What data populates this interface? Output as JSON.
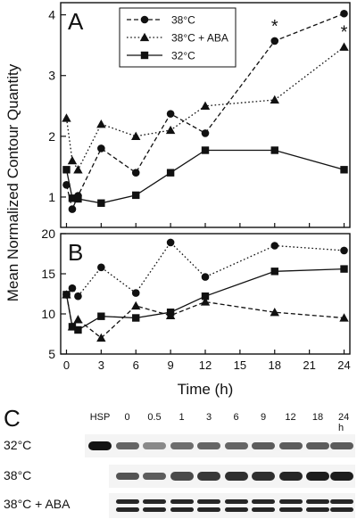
{
  "chart_data": [
    {
      "panel": "A",
      "type": "line",
      "ylabel": "Mean Normalized Contour Quantity",
      "ylim": [
        0.5,
        4.2
      ],
      "yticks": [
        1,
        2,
        3,
        4
      ],
      "xlim": [
        -0.5,
        24.5
      ],
      "series": [
        {
          "name": "38°C",
          "marker": "circle",
          "dash": "dashed",
          "x": [
            0,
            0.5,
            1,
            3,
            6,
            9,
            12,
            18,
            24
          ],
          "values": [
            1.2,
            0.8,
            1.02,
            1.8,
            1.4,
            2.37,
            2.05,
            3.57,
            4.02
          ]
        },
        {
          "name": "38°C + ABA",
          "marker": "triangle",
          "dash": "dotted",
          "x": [
            0,
            0.5,
            1,
            3,
            6,
            9,
            12,
            18,
            24
          ],
          "values": [
            2.3,
            1.6,
            1.45,
            2.2,
            2.0,
            2.1,
            2.5,
            2.6,
            3.47
          ]
        },
        {
          "name": "32°C",
          "marker": "square",
          "dash": "solid",
          "x": [
            0,
            0.5,
            1,
            3,
            6,
            9,
            12,
            18,
            24
          ],
          "values": [
            1.45,
            0.98,
            0.97,
            0.9,
            1.03,
            1.4,
            1.77,
            1.77,
            1.45
          ]
        }
      ],
      "annotations": [
        {
          "text": "*",
          "x": 18,
          "y": 3.57
        },
        {
          "text": "*",
          "x": 24,
          "y": 4.02
        },
        {
          "text": "*",
          "x": 24,
          "y": 3.47
        }
      ],
      "legend": "top-left"
    },
    {
      "panel": "B",
      "type": "line",
      "ylim": [
        5,
        20
      ],
      "yticks": [
        5,
        10,
        15,
        20
      ],
      "xlabel": "Time (h)",
      "xlim": [
        -0.5,
        24.5
      ],
      "xticks": [
        0,
        3,
        6,
        9,
        12,
        15,
        18,
        21,
        24
      ],
      "series": [
        {
          "name": "38°C",
          "marker": "circle",
          "dash": "dotted",
          "x": [
            0,
            0.5,
            1,
            3,
            6,
            9,
            12,
            18,
            24
          ],
          "values": [
            12.4,
            13.2,
            12.2,
            15.8,
            12.6,
            18.9,
            14.6,
            18.5,
            17.9
          ]
        },
        {
          "name": "38°C + ABA",
          "marker": "triangle",
          "dash": "dashed",
          "x": [
            0,
            0.5,
            1,
            3,
            6,
            9,
            12,
            18,
            24
          ],
          "values": [
            12.4,
            8.4,
            9.3,
            7.0,
            11.0,
            9.8,
            11.5,
            10.2,
            9.5
          ]
        },
        {
          "name": "32°C",
          "marker": "square",
          "dash": "solid",
          "x": [
            0,
            0.5,
            1,
            3,
            6,
            9,
            12,
            18,
            24
          ],
          "values": [
            12.4,
            8.4,
            8.0,
            9.7,
            9.5,
            10.2,
            12.2,
            15.3,
            15.6
          ]
        }
      ]
    }
  ],
  "panel_c": {
    "label": "C",
    "lanes": [
      "HSP",
      "0",
      "0.5",
      "1",
      "3",
      "6",
      "9",
      "12",
      "18",
      "24 h"
    ],
    "rows": [
      {
        "label": "32°C",
        "intensity": [
          1.0,
          0.55,
          0.35,
          0.5,
          0.55,
          0.55,
          0.6,
          0.6,
          0.6,
          0.6
        ]
      },
      {
        "label": "38°C",
        "intensity": [
          0,
          0.65,
          0.6,
          0.7,
          0.8,
          0.85,
          0.85,
          0.9,
          0.95,
          0.95
        ]
      },
      {
        "label": "38°C + ABA",
        "intensity": [
          0,
          0.9,
          0.9,
          0.9,
          0.9,
          0.9,
          0.9,
          0.9,
          0.9,
          0.9
        ]
      }
    ]
  }
}
